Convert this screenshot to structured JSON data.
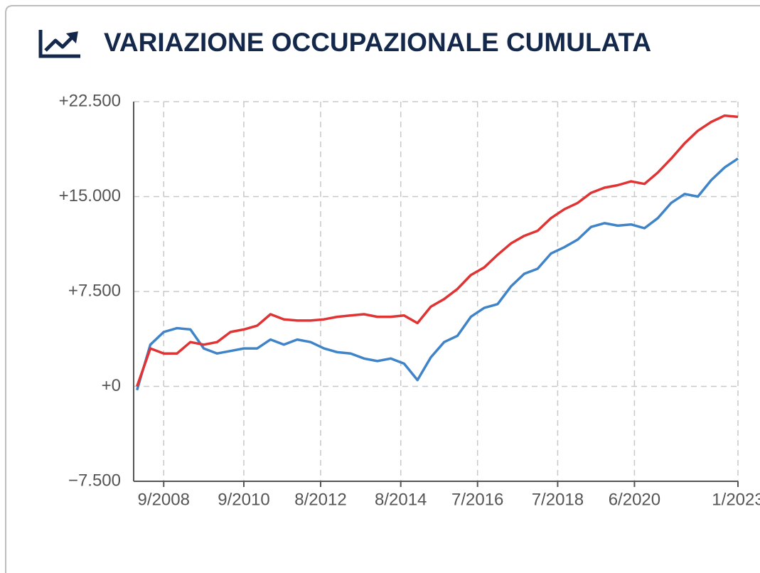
{
  "chart_data": {
    "type": "line",
    "title": "VARIAZIONE OCCUPAZIONALE CUMULATA",
    "x": [
      "1/2008",
      "5/2008",
      "9/2008",
      "1/2009",
      "5/2009",
      "9/2009",
      "1/2010",
      "5/2010",
      "9/2010",
      "1/2011",
      "5/2011",
      "9/2011",
      "1/2012",
      "5/2012",
      "9/2012",
      "1/2013",
      "5/2013",
      "9/2013",
      "1/2014",
      "5/2014",
      "9/2014",
      "1/2015",
      "5/2015",
      "9/2015",
      "1/2016",
      "5/2016",
      "9/2016",
      "1/2017",
      "5/2017",
      "9/2017",
      "1/2018",
      "5/2018",
      "9/2018",
      "1/2019",
      "5/2019",
      "9/2019",
      "1/2020",
      "5/2020",
      "9/2020",
      "1/2021",
      "5/2021",
      "9/2021",
      "1/2022",
      "5/2022",
      "9/2022",
      "1/2023"
    ],
    "series": [
      {
        "color": "#e03434",
        "values": [
          0,
          3000,
          2600,
          2600,
          3500,
          3300,
          3500,
          4300,
          4500,
          4800,
          5700,
          5300,
          5200,
          5200,
          5300,
          5500,
          5600,
          5700,
          5500,
          5500,
          5600,
          5000,
          6300,
          6900,
          7700,
          8800,
          9400,
          10400,
          11300,
          11900,
          12300,
          13300,
          14000,
          14500,
          15300,
          15700,
          15900,
          16200,
          16000,
          16900,
          18000,
          19200,
          20200,
          20900,
          21400,
          21300
        ]
      },
      {
        "color": "#3f84c8",
        "values": [
          -300,
          3300,
          4300,
          4600,
          4500,
          3000,
          2600,
          2800,
          3000,
          3000,
          3700,
          3300,
          3700,
          3500,
          3000,
          2700,
          2600,
          2200,
          2000,
          2200,
          1800,
          500,
          2300,
          3500,
          4000,
          5500,
          6200,
          6500,
          7900,
          8900,
          9300,
          10500,
          11000,
          11600,
          12600,
          12900,
          12700,
          12800,
          12500,
          13300,
          14500,
          15200,
          15000,
          16300,
          17300,
          18000
        ]
      }
    ],
    "xlim": [
      "12/2007",
      "1/2023"
    ],
    "xticks": [
      "9/2008",
      "9/2010",
      "8/2012",
      "8/2014",
      "7/2016",
      "7/2018",
      "6/2020",
      "1/2023"
    ],
    "ylim": [
      -7500,
      22500
    ],
    "yticks": [
      {
        "value": -7500,
        "label": "−7.500"
      },
      {
        "value": 0,
        "label": "+0"
      },
      {
        "value": 7500,
        "label": "+7.500"
      },
      {
        "value": 15000,
        "label": "+15.000"
      },
      {
        "value": 22500,
        "label": "+22.500"
      }
    ],
    "grid": true
  }
}
